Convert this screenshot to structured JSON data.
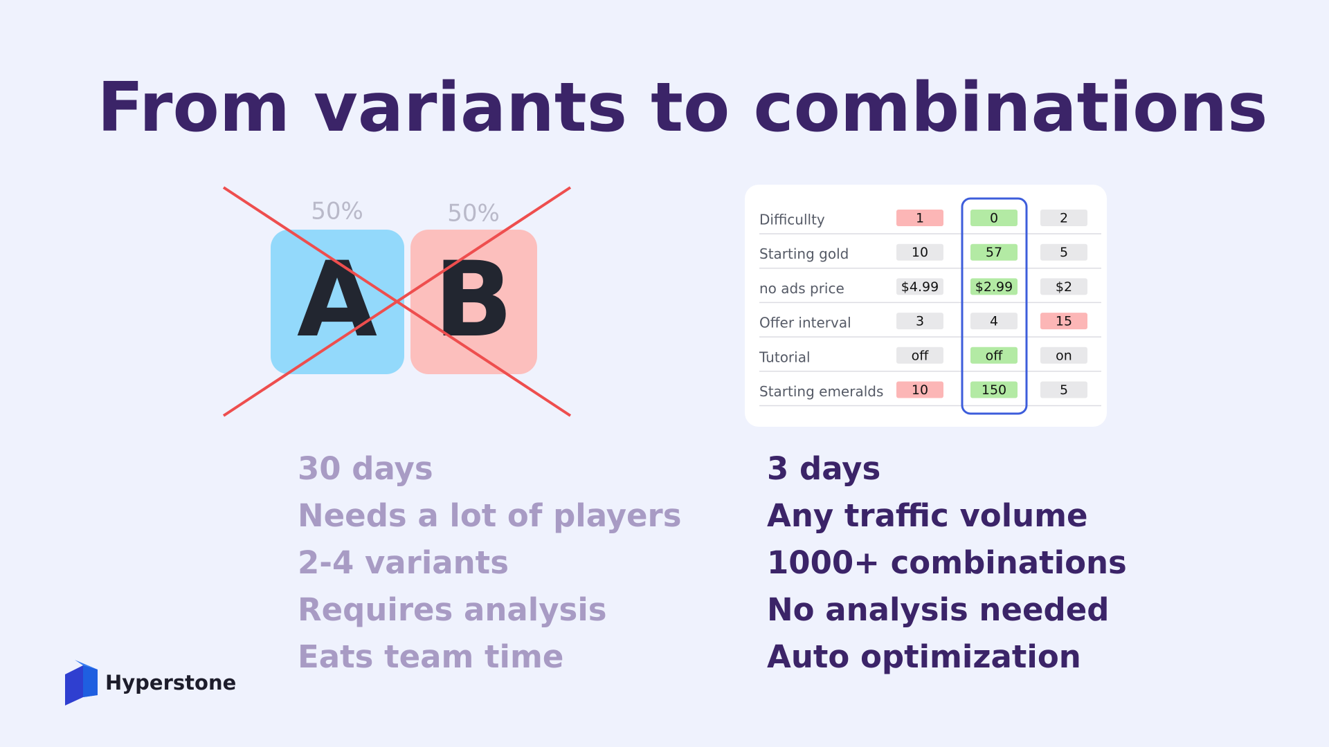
{
  "title": "From variants to combinations",
  "ab": {
    "a": {
      "letter": "A",
      "share": "50%"
    },
    "b": {
      "letter": "B",
      "share": "50%"
    }
  },
  "table": {
    "rows": [
      {
        "label": "Difficullty",
        "cells": [
          "1",
          "0",
          "2"
        ],
        "tones": [
          "red",
          "green",
          "gray"
        ]
      },
      {
        "label": "Starting gold",
        "cells": [
          "10",
          "57",
          "5"
        ],
        "tones": [
          "gray",
          "green",
          "gray"
        ]
      },
      {
        "label": "no ads price",
        "cells": [
          "$4.99",
          "$2.99",
          "$2"
        ],
        "tones": [
          "gray",
          "green",
          "gray"
        ]
      },
      {
        "label": "Offer interval",
        "cells": [
          "3",
          "4",
          "15"
        ],
        "tones": [
          "gray",
          "gray",
          "red"
        ]
      },
      {
        "label": "Tutorial",
        "cells": [
          "off",
          "off",
          "on"
        ],
        "tones": [
          "gray",
          "green",
          "gray"
        ]
      },
      {
        "label": "Starting emeralds",
        "cells": [
          "10",
          "150",
          "5"
        ],
        "tones": [
          "red",
          "green",
          "gray"
        ]
      }
    ]
  },
  "left_list": [
    "30 days",
    "Needs a lot of players",
    "2-4 variants",
    "Requires analysis",
    "Eats team time"
  ],
  "right_list": [
    "3 days",
    "Any traffic volume",
    "1000+ combinations",
    "No analysis needed",
    "Auto optimization"
  ],
  "brand": "Hyperstone"
}
